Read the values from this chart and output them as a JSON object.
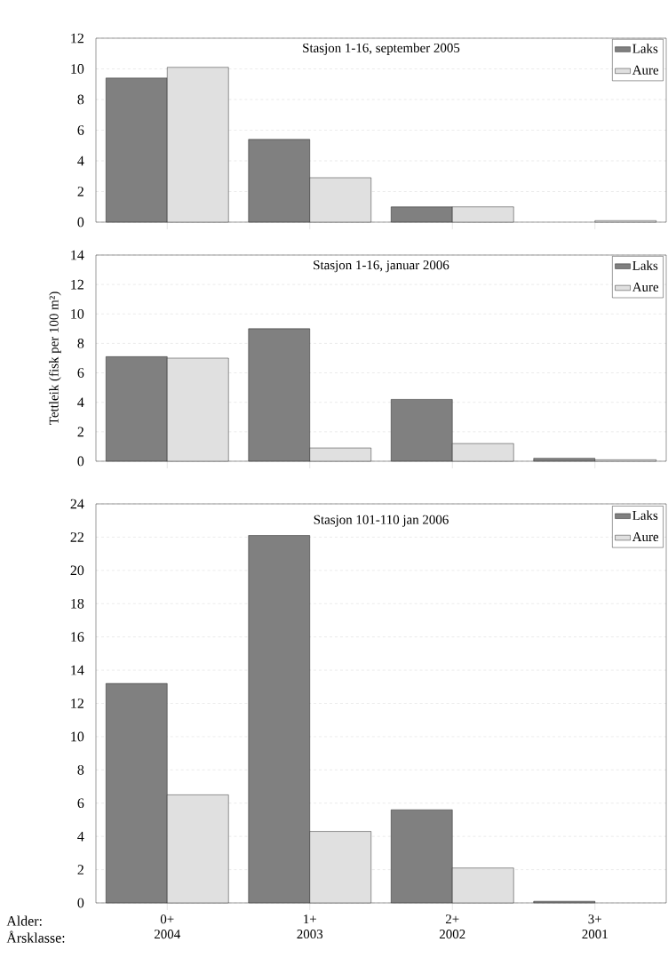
{
  "chart_data": [
    {
      "type": "bar",
      "title": "Stasjon 1-16, september 2005",
      "categories": [
        null,
        null,
        null,
        null
      ],
      "ylim": [
        0,
        12
      ],
      "yticks": [
        0,
        2,
        4,
        6,
        8,
        10,
        12
      ],
      "grid": "y",
      "legend": "top right",
      "series": [
        {
          "name": "Laks",
          "color": "#808080",
          "values": [
            9.4,
            5.4,
            1.0,
            null
          ]
        },
        {
          "name": "Aure",
          "color": "#e0e0e0",
          "values": [
            10.1,
            2.9,
            1.0,
            0.1
          ]
        }
      ]
    },
    {
      "type": "bar",
      "title": "Stasjon 1-16, januar 2006",
      "ylabel": "Tettleik (fisk per 100 m²)",
      "categories": [
        null,
        null,
        null,
        null
      ],
      "ylim": [
        0,
        14
      ],
      "yticks": [
        0,
        2,
        4,
        6,
        8,
        10,
        12,
        14
      ],
      "grid": "y",
      "legend": "top right",
      "series": [
        {
          "name": "Laks",
          "color": "#808080",
          "values": [
            7.1,
            9.0,
            4.2,
            0.2
          ]
        },
        {
          "name": "Aure",
          "color": "#e0e0e0",
          "values": [
            7.0,
            0.9,
            1.2,
            0.1
          ]
        }
      ]
    },
    {
      "type": "bar",
      "title": "Stasjon 101-110 jan 2006",
      "categories": [
        "0+ 2004",
        "1+ 2003",
        "2+ 2002",
        "3+ 2001"
      ],
      "ylim": [
        0,
        24
      ],
      "yticks": [
        0,
        2,
        4,
        6,
        8,
        10,
        12,
        14,
        16,
        18,
        20,
        22,
        24
      ],
      "grid": "y",
      "legend": "top right",
      "annotations": [
        "Alder:",
        "Årsklasse:"
      ],
      "series": [
        {
          "name": "Laks",
          "color": "#808080",
          "values": [
            13.2,
            22.1,
            5.6,
            0.1
          ]
        },
        {
          "name": "Aure",
          "color": "#e0e0e0",
          "values": [
            6.5,
            4.3,
            2.1,
            null
          ]
        }
      ]
    }
  ]
}
